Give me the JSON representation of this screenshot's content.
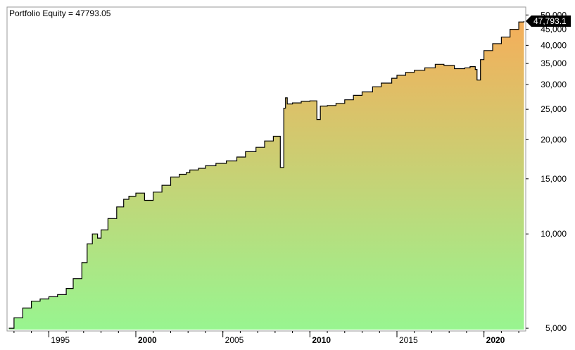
{
  "title_name": "Portfolio Equity",
  "title_sep": " = ",
  "title_value": "47793.05",
  "chart_data": {
    "type": "area",
    "title": "Portfolio Equity = 47793.05",
    "last_value_label": "47,793.1",
    "y_scale": "log",
    "ylim": [
      4900,
      53000
    ],
    "xlim": [
      1992.6,
      2022.4
    ],
    "grid": false,
    "fill_colors": {
      "top": "#F5AE5A",
      "bottom": "#98F590"
    },
    "line_color": "#000000",
    "y_ticks": [
      {
        "value": 5000,
        "label": "5,000"
      },
      {
        "value": 10000,
        "label": "10,000"
      },
      {
        "value": 15000,
        "label": "15,000"
      },
      {
        "value": 20000,
        "label": "20,000"
      },
      {
        "value": 25000,
        "label": "25,000"
      },
      {
        "value": 30000,
        "label": "30,000"
      },
      {
        "value": 35000,
        "label": "35,000"
      },
      {
        "value": 40000,
        "label": "40,000"
      },
      {
        "value": 45000,
        "label": "45,000"
      },
      {
        "value": 50000,
        "label": "50,000"
      }
    ],
    "x_ticks": [
      {
        "value": 1995,
        "label": "1995",
        "bold": false
      },
      {
        "value": 2000,
        "label": "2000",
        "bold": true
      },
      {
        "value": 2005,
        "label": "2005",
        "bold": false
      },
      {
        "value": 2010,
        "label": "2010",
        "bold": true
      },
      {
        "value": 2015,
        "label": "2015",
        "bold": false
      },
      {
        "value": 2020,
        "label": "2020",
        "bold": true
      }
    ],
    "series": [
      {
        "x": [
          1992.7,
          1993.0,
          1993.5,
          1994.0,
          1994.5,
          1995.0,
          1995.5,
          1996.0,
          1996.4,
          1996.9,
          1997.2,
          1997.5,
          1997.8,
          1998.0,
          1998.4,
          1998.9,
          1999.3,
          1999.6,
          2000.0,
          2000.5,
          2001.0,
          2001.5,
          2002.0,
          2002.5,
          2002.9,
          2003.1,
          2003.6,
          2004.0,
          2004.6,
          2005.2,
          2005.8,
          2006.3,
          2006.9,
          2007.4,
          2007.9,
          2008.3,
          2008.5,
          2008.6,
          2008.7,
          2009.0,
          2009.5,
          2010.0,
          2010.4,
          2010.6,
          2011.0,
          2011.5,
          2012.0,
          2012.5,
          2013.0,
          2013.6,
          2014.1,
          2014.7,
          2015.0,
          2015.5,
          2016.0,
          2016.6,
          2017.2,
          2017.7,
          2018.3,
          2018.9,
          2019.2,
          2019.5,
          2019.6,
          2019.8,
          2020.0,
          2020.5,
          2021.0,
          2021.5,
          2022.0,
          2022.3
        ],
        "y": [
          5000,
          5400,
          5800,
          6100,
          6200,
          6300,
          6400,
          6700,
          7200,
          8100,
          9300,
          10000,
          9700,
          10300,
          11200,
          12200,
          12900,
          13200,
          13500,
          12800,
          13600,
          14300,
          15200,
          15500,
          15700,
          16000,
          16200,
          16500,
          16800,
          17100,
          17600,
          18300,
          18900,
          19800,
          20500,
          16300,
          25200,
          27200,
          26000,
          26200,
          26500,
          26600,
          23200,
          25600,
          25700,
          26100,
          26800,
          27700,
          28400,
          29500,
          30300,
          31400,
          32100,
          32800,
          33300,
          33900,
          34800,
          34500,
          33700,
          33900,
          34200,
          33500,
          31000,
          36000,
          38500,
          40500,
          42500,
          45000,
          47500,
          47793
        ]
      }
    ]
  }
}
